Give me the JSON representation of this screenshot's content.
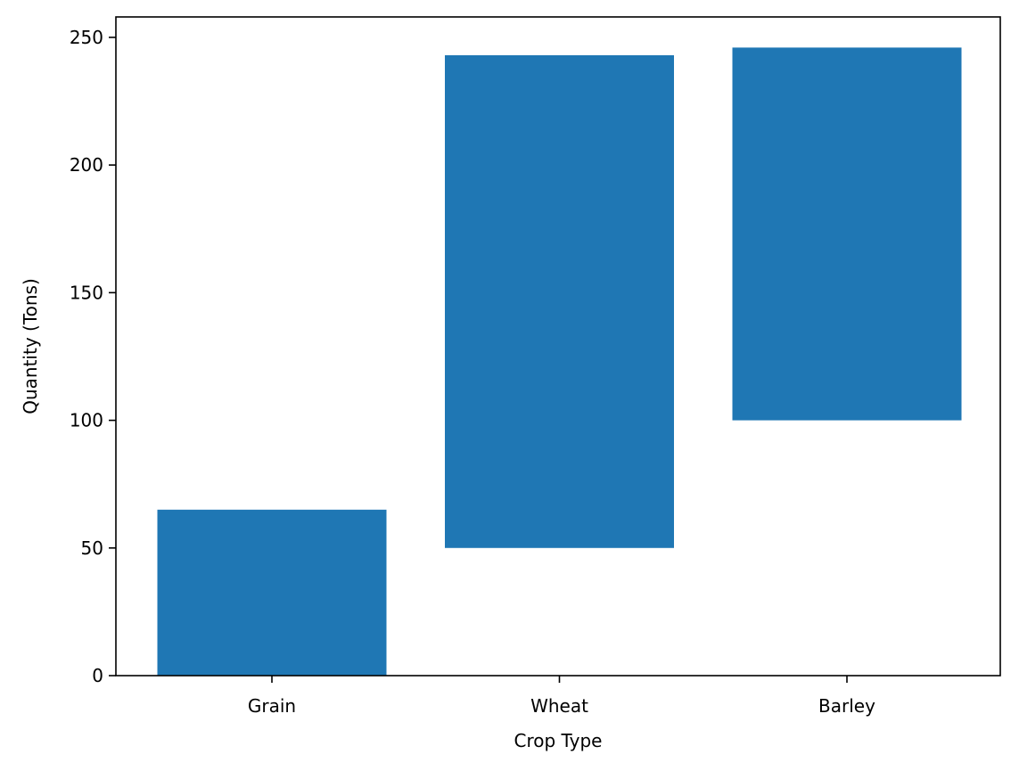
{
  "chart_data": {
    "type": "bar",
    "title": "",
    "xlabel": "Crop Type",
    "ylabel": "Quantity (Tons)",
    "categories": [
      "Grain",
      "Wheat",
      "Barley"
    ],
    "series": [
      {
        "bottoms": [
          0,
          50,
          100
        ],
        "tops": [
          65,
          243,
          246
        ],
        "color": "#1f77b4"
      }
    ],
    "ylim": [
      0,
      258
    ],
    "yticks": [
      0,
      50,
      100,
      150,
      200,
      250
    ],
    "grid": false,
    "legend": "none"
  }
}
